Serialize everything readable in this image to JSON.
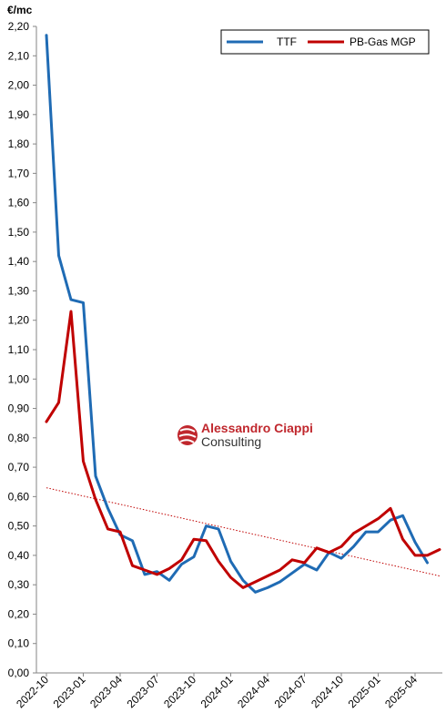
{
  "chart_data": {
    "type": "line",
    "title": "",
    "unit_label": "€/mc",
    "xlabel": "",
    "ylabel": "",
    "ylim": [
      0,
      2.2
    ],
    "y_ticks": [
      "0,00",
      "0,10",
      "0,20",
      "0,30",
      "0,40",
      "0,50",
      "0,60",
      "0,70",
      "0,80",
      "0,90",
      "1,00",
      "1,10",
      "1,20",
      "1,30",
      "1,40",
      "1,50",
      "1,60",
      "1,70",
      "1,80",
      "1,90",
      "2,00",
      "2,10",
      "2,20"
    ],
    "x_tick_labels": [
      "2022-10",
      "2023-01",
      "2023-04",
      "2023-07",
      "2023-10",
      "2024-01",
      "2024-04",
      "2024-07",
      "2024-10",
      "2025-01",
      "2025-04"
    ],
    "categories": [
      "2022-10",
      "2022-11",
      "2022-12",
      "2023-01",
      "2023-02",
      "2023-03",
      "2023-04",
      "2023-05",
      "2023-06",
      "2023-07",
      "2023-08",
      "2023-09",
      "2023-10",
      "2023-11",
      "2023-12",
      "2024-01",
      "2024-02",
      "2024-03",
      "2024-04",
      "2024-05",
      "2024-06",
      "2024-07",
      "2024-08",
      "2024-09",
      "2024-10",
      "2024-11",
      "2024-12",
      "2025-01",
      "2025-02",
      "2025-03",
      "2025-04",
      "2025-05",
      "2025-06"
    ],
    "series": [
      {
        "name": "TTF",
        "color": "#1f6bb4",
        "values": [
          2.17,
          1.42,
          1.27,
          1.26,
          0.67,
          0.56,
          0.47,
          0.45,
          0.335,
          0.345,
          0.315,
          0.37,
          0.395,
          0.5,
          0.49,
          0.38,
          0.315,
          0.275,
          0.29,
          0.31,
          0.34,
          0.37,
          0.35,
          0.41,
          0.39,
          0.43,
          0.48,
          0.48,
          0.52,
          0.535,
          0.445,
          0.375,
          null
        ]
      },
      {
        "name": "PB-Gas MGP",
        "color": "#c00000",
        "values": [
          0.855,
          0.92,
          1.23,
          0.72,
          0.59,
          0.49,
          0.48,
          0.365,
          0.35,
          0.335,
          0.355,
          0.385,
          0.455,
          0.45,
          0.38,
          0.325,
          0.29,
          0.31,
          0.33,
          0.35,
          0.385,
          0.375,
          0.425,
          0.41,
          0.43,
          0.475,
          0.5,
          0.525,
          0.56,
          0.455,
          0.4,
          0.4,
          0.42
        ]
      }
    ],
    "trendline": {
      "color": "#c00000",
      "style": "dotted",
      "start": 0.63,
      "end": 0.33
    },
    "grid": false,
    "legend_position": "top-right"
  },
  "watermark": {
    "line1": "Alessandro Ciappi",
    "line2": "Consulting",
    "color": "#c0272d"
  }
}
